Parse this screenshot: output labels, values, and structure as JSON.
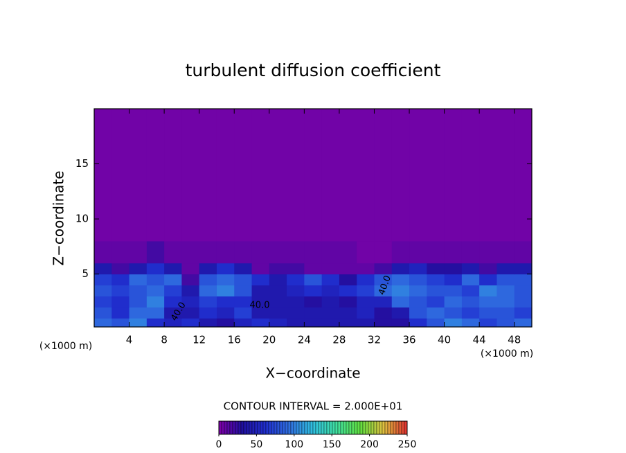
{
  "chart_data": {
    "type": "heatmap",
    "title": "turbulent diffusion coefficient",
    "x_label": "X−coordinate",
    "y_label": "Z−coordinate",
    "x_unit_left": "(×1000 m)",
    "x_unit_right": "(×1000 m)",
    "contour_interval": "CONTOUR INTERVAL = 2.000E+01",
    "contour_labels": [
      "40.0",
      "40.0",
      "40.0"
    ],
    "xlim": [
      0,
      50
    ],
    "ylim": [
      0.2,
      20
    ],
    "xticks": [
      4,
      8,
      12,
      16,
      20,
      24,
      28,
      32,
      36,
      40,
      44,
      48
    ],
    "yticks": [
      5,
      10,
      15
    ],
    "xbins": [
      0,
      2,
      4,
      6,
      8,
      10,
      12,
      14,
      16,
      18,
      20,
      22,
      24,
      26,
      28,
      30,
      32,
      34,
      36,
      38,
      40,
      42,
      44,
      46,
      48,
      50
    ],
    "ybins": [
      0.2,
      1,
      2,
      3,
      4,
      5,
      6,
      8,
      20
    ],
    "values": [
      [
        90,
        80,
        100,
        60,
        50,
        60,
        40,
        30,
        50,
        60,
        50,
        40,
        40,
        40,
        40,
        40,
        30,
        30,
        60,
        80,
        100,
        90,
        70,
        80,
        90
      ],
      [
        80,
        60,
        90,
        90,
        40,
        40,
        60,
        50,
        70,
        40,
        40,
        40,
        40,
        40,
        40,
        50,
        30,
        40,
        80,
        90,
        80,
        70,
        80,
        80,
        70
      ],
      [
        70,
        60,
        80,
        100,
        60,
        50,
        70,
        60,
        60,
        40,
        40,
        40,
        30,
        40,
        30,
        50,
        50,
        90,
        80,
        70,
        90,
        80,
        90,
        90,
        80
      ],
      [
        80,
        70,
        80,
        90,
        70,
        40,
        90,
        100,
        80,
        40,
        40,
        50,
        60,
        50,
        60,
        70,
        90,
        100,
        90,
        80,
        80,
        70,
        100,
        90,
        80
      ],
      [
        70,
        60,
        90,
        80,
        90,
        20,
        80,
        90,
        80,
        60,
        40,
        60,
        80,
        60,
        30,
        60,
        80,
        90,
        80,
        70,
        60,
        90,
        60,
        80,
        80
      ],
      [
        40,
        20,
        40,
        60,
        40,
        10,
        40,
        60,
        40,
        10,
        20,
        20,
        10,
        10,
        10,
        10,
        20,
        40,
        50,
        30,
        30,
        40,
        20,
        40,
        40
      ],
      [
        10,
        10,
        10,
        20,
        10,
        10,
        10,
        10,
        10,
        10,
        10,
        10,
        10,
        10,
        10,
        5,
        5,
        10,
        10,
        10,
        10,
        10,
        10,
        10,
        10
      ],
      [
        5,
        5,
        5,
        5,
        5,
        5,
        5,
        5,
        5,
        5,
        5,
        5,
        5,
        5,
        5,
        5,
        5,
        5,
        5,
        5,
        5,
        5,
        5,
        5,
        5
      ]
    ],
    "colorscale": [
      "#8000a8",
      "#2010a0",
      "#2030d0",
      "#3070e0",
      "#30c0e0",
      "#40e0a0",
      "#60e040",
      "#e0c040",
      "#e03030"
    ],
    "clim": [
      0,
      250
    ],
    "cticks": [
      0,
      50,
      100,
      150,
      200,
      250
    ]
  }
}
